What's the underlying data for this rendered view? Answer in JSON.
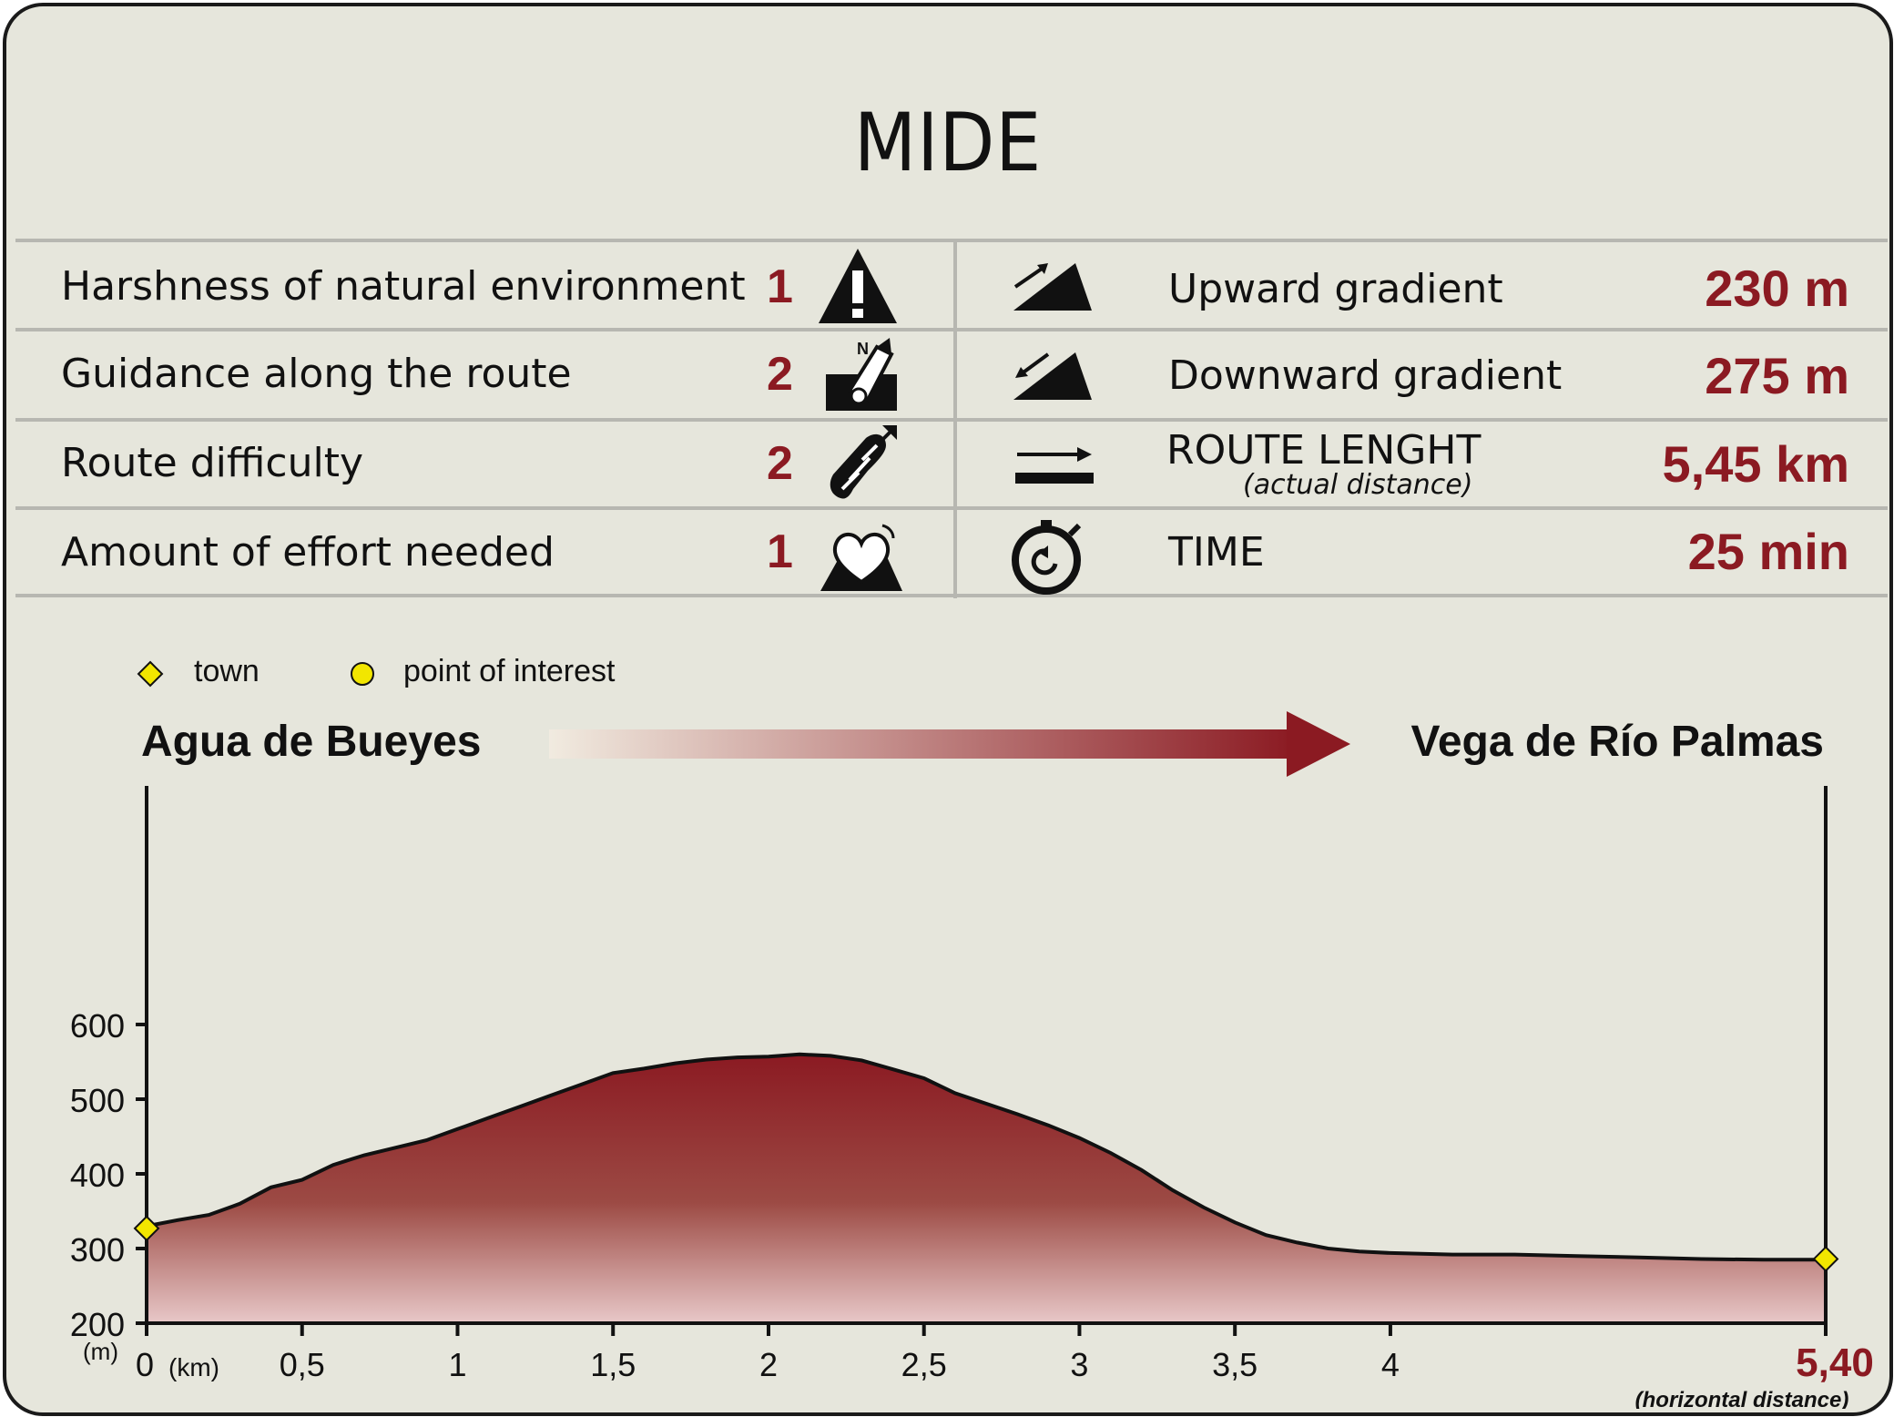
{
  "title": "MIDE",
  "mide_rows": [
    {
      "label": "Harshness of natural environment",
      "score": "1",
      "icon": "warning-triangle-icon"
    },
    {
      "label": "Guidance along the route",
      "score": "2",
      "icon": "compass-map-icon"
    },
    {
      "label": "Route difficulty",
      "score": "2",
      "icon": "footprint-icon"
    },
    {
      "label": "Amount of effort needed",
      "score": "1",
      "icon": "heart-mountain-icon"
    }
  ],
  "stats": [
    {
      "label": "Upward gradient",
      "value": "230 m",
      "icon": "upward-slope-icon"
    },
    {
      "label": "Downward gradient",
      "value": "275 m",
      "icon": "downward-slope-icon"
    },
    {
      "label": "ROUTE LENGHT",
      "sublabel": "(actual distance)",
      "value": "5,45 km",
      "icon": "distance-arrow-icon"
    },
    {
      "label": "TIME",
      "value": "25 min",
      "icon": "stopwatch-icon"
    }
  ],
  "legend": {
    "town": "town",
    "poi": "point of interest",
    "town_color": "#f2e600",
    "poi_color": "#f2e600"
  },
  "route": {
    "start": "Agua de Bueyes",
    "end": "Vega de Río Palmas"
  },
  "colors": {
    "accent": "#8b1a22",
    "background": "#e6e6dc",
    "profile_top": "#8b1a22",
    "profile_bottom": "#e8c8c8"
  },
  "chart_data": {
    "type": "area",
    "title": "",
    "xlabel": "(km)",
    "ylabel": "(m)",
    "xlim": [
      0,
      5.4
    ],
    "ylim": [
      200,
      600
    ],
    "x_ticks": [
      "0",
      "0,5",
      "1",
      "1,5",
      "2",
      "2,5",
      "3",
      "3,5",
      "4"
    ],
    "x_tick_values": [
      0,
      0.5,
      1,
      1.5,
      2,
      2.5,
      3,
      3.5,
      4
    ],
    "x_end_label": "5,40",
    "x_end_note": "(horizontal distance)",
    "y_ticks": [
      "200",
      "300",
      "400",
      "500",
      "600"
    ],
    "y_tick_values": [
      200,
      300,
      400,
      500,
      600
    ],
    "x": [
      0,
      0.1,
      0.2,
      0.3,
      0.4,
      0.5,
      0.6,
      0.7,
      0.8,
      0.9,
      1.0,
      1.1,
      1.2,
      1.3,
      1.4,
      1.5,
      1.6,
      1.7,
      1.8,
      1.9,
      2.0,
      2.1,
      2.2,
      2.3,
      2.4,
      2.5,
      2.6,
      2.7,
      2.8,
      2.9,
      3.0,
      3.1,
      3.2,
      3.3,
      3.4,
      3.5,
      3.6,
      3.7,
      3.8,
      3.9,
      4.0,
      4.2,
      4.4,
      4.6,
      4.8,
      5.0,
      5.2,
      5.4
    ],
    "y": [
      330,
      338,
      345,
      360,
      382,
      392,
      412,
      425,
      435,
      445,
      460,
      475,
      490,
      505,
      520,
      535,
      541,
      548,
      553,
      556,
      557,
      560,
      558,
      552,
      540,
      528,
      508,
      494,
      480,
      465,
      448,
      428,
      405,
      378,
      355,
      335,
      318,
      308,
      300,
      296,
      294,
      292,
      292,
      290,
      288,
      286,
      285,
      285
    ],
    "markers": [
      {
        "x": 0,
        "y": 327,
        "kind": "town"
      },
      {
        "x": 5.4,
        "y": 286,
        "kind": "town"
      }
    ]
  }
}
